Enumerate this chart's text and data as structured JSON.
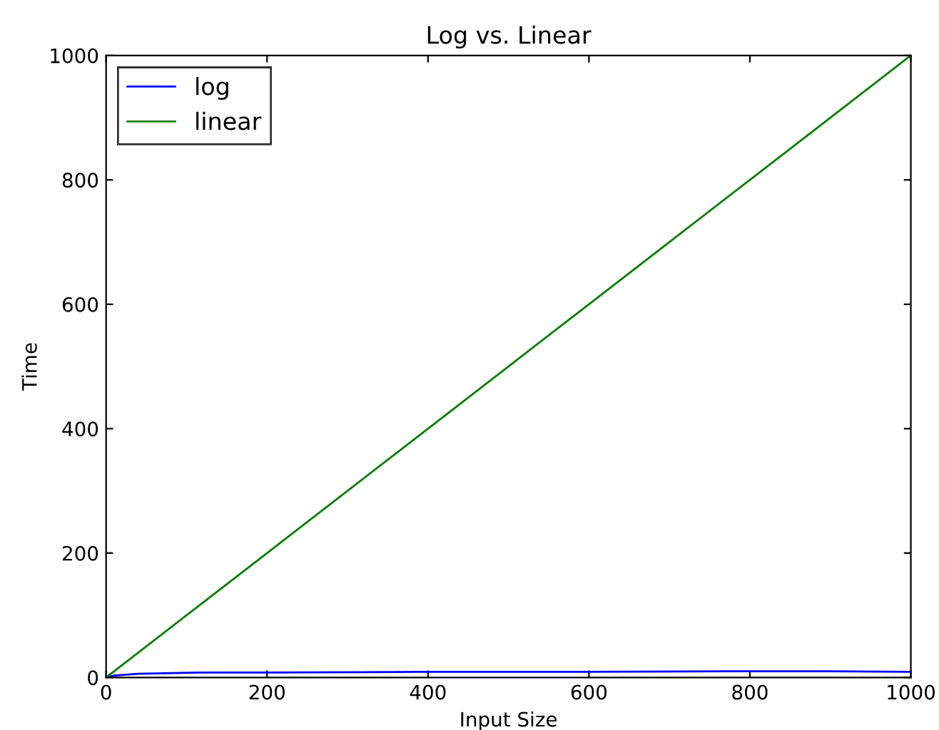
{
  "chart_data": {
    "type": "line",
    "title": "Log vs. Linear",
    "xlabel": "Input Size",
    "ylabel": "Time",
    "x": [
      1,
      10,
      40,
      120,
      200,
      400,
      600,
      800,
      900,
      1000
    ],
    "series": [
      {
        "name": "log",
        "color": "#0000ff",
        "values": [
          0,
          3,
          6,
          8,
          8,
          9,
          9,
          10,
          10,
          9
        ]
      },
      {
        "name": "linear",
        "color": "#008000",
        "values": [
          1,
          10,
          40,
          120,
          200,
          400,
          600,
          800,
          900,
          1000
        ]
      }
    ],
    "xlim": [
      0,
      1000
    ],
    "ylim": [
      0,
      1000
    ],
    "xticks": [
      0,
      200,
      400,
      600,
      800,
      1000
    ],
    "yticks": [
      0,
      200,
      400,
      600,
      800,
      1000
    ],
    "legend": "top left",
    "grid": false
  }
}
